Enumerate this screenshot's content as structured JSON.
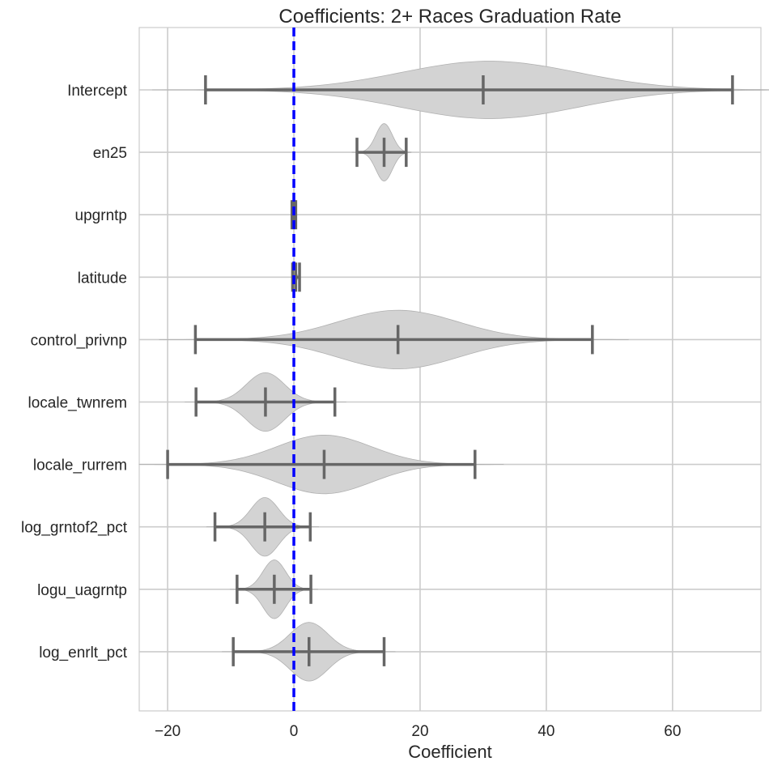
{
  "chart_data": {
    "type": "violin",
    "title": "Coefficients: 2+ Races Graduation Rate",
    "xlabel": "Coefficient",
    "ylabel": "",
    "xlim": [
      -24.5,
      74
    ],
    "xticks": [
      -20,
      0,
      20,
      40,
      60
    ],
    "xtick_labels": [
      "−20",
      "0",
      "20",
      "40",
      "60"
    ],
    "grid": true,
    "reference_line": {
      "x": 0,
      "color": "#0000ff",
      "style": "dashed"
    },
    "violin_color": "#d3d3d3",
    "whisker_color": "#666666",
    "categories": [
      "Intercept",
      "en25",
      "upgrntp",
      "latitude",
      "control_privnp",
      "locale_twnrem",
      "locale_rurrem",
      "log_grntof2_pct",
      "logu_uagrntp",
      "log_enrlt_pct"
    ],
    "series": [
      {
        "label": "Intercept",
        "min": -14.0,
        "median": 30.0,
        "max": 69.5,
        "mode": 31.0,
        "spread": 14.0,
        "max_halfwidth": 0.46
      },
      {
        "label": "en25",
        "min": 10.0,
        "median": 14.3,
        "max": 17.8,
        "mode": 14.3,
        "spread": 1.3,
        "max_halfwidth": 0.46
      },
      {
        "label": "upgrntp",
        "min": -0.3,
        "median": 0.0,
        "max": 0.3,
        "mode": 0.0,
        "spread": 0.1,
        "max_halfwidth": 0.05
      },
      {
        "label": "latitude",
        "min": -0.2,
        "median": 0.3,
        "max": 0.9,
        "mode": 0.3,
        "spread": 0.2,
        "max_halfwidth": 0.08
      },
      {
        "label": "control_privnp",
        "min": -15.6,
        "median": 16.5,
        "max": 47.3,
        "mode": 16.5,
        "spread": 9.5,
        "max_halfwidth": 0.47
      },
      {
        "label": "locale_twnrem",
        "min": -15.5,
        "median": -4.5,
        "max": 6.5,
        "mode": -4.5,
        "spread": 3.0,
        "max_halfwidth": 0.47
      },
      {
        "label": "locale_rurrem",
        "min": -20.0,
        "median": 4.8,
        "max": 28.7,
        "mode": 4.8,
        "spread": 7.5,
        "max_halfwidth": 0.47
      },
      {
        "label": "log_grntof2_pct",
        "min": -12.5,
        "median": -4.6,
        "max": 2.6,
        "mode": -4.6,
        "spread": 2.2,
        "max_halfwidth": 0.47
      },
      {
        "label": "logu_uagrntp",
        "min": -9.0,
        "median": -3.1,
        "max": 2.7,
        "mode": -3.1,
        "spread": 1.8,
        "max_halfwidth": 0.47
      },
      {
        "label": "log_enrlt_pct",
        "min": -9.6,
        "median": 2.4,
        "max": 14.3,
        "mode": 2.4,
        "spread": 3.0,
        "max_halfwidth": 0.47
      }
    ]
  }
}
